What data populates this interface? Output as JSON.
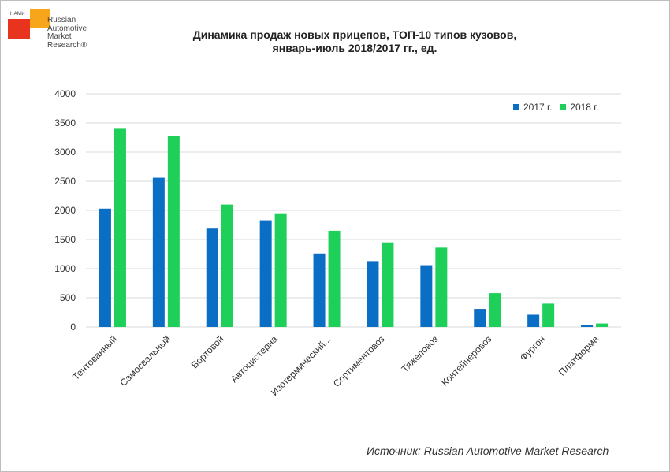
{
  "logo": {
    "org": "НАМИ",
    "brand_lines": [
      "Russian",
      "Automotive",
      "Market",
      "Research®"
    ]
  },
  "title": {
    "line1": "Динамика продаж новых прицепов, ТОП-10 типов кузовов,",
    "line2": "январь-июль 2018/2017 гг., ед."
  },
  "colors": {
    "series_2017": "#0b6ec5",
    "series_2018": "#1ed05a",
    "grid": "#d9d9d9",
    "text": "#333333"
  },
  "chart_data": {
    "type": "bar",
    "title": "Динамика продаж новых прицепов, ТОП-10 типов кузовов, январь-июль 2018/2017 гг., ед.",
    "xlabel": "",
    "ylabel": "",
    "ylim": [
      0,
      4000
    ],
    "yticks": [
      0,
      500,
      1000,
      1500,
      2000,
      2500,
      3000,
      3500,
      4000
    ],
    "grid": true,
    "legend_position": "top-right",
    "categories": [
      "Тентованный",
      "Самосвальный",
      "Бортовой",
      "Автоцистерна",
      "Изотермический...",
      "Сортиментовоз",
      "Тяжеловоз",
      "Контейнеровоз",
      "Фургон",
      "Платформа"
    ],
    "series": [
      {
        "name": "2017 г.",
        "values": [
          2030,
          2560,
          1700,
          1830,
          1260,
          1130,
          1060,
          310,
          210,
          40
        ]
      },
      {
        "name": "2018 г.",
        "values": [
          3400,
          3280,
          2100,
          1950,
          1650,
          1450,
          1360,
          580,
          400,
          60
        ]
      }
    ]
  },
  "source": "Источник: Russian Automotive Market Research"
}
